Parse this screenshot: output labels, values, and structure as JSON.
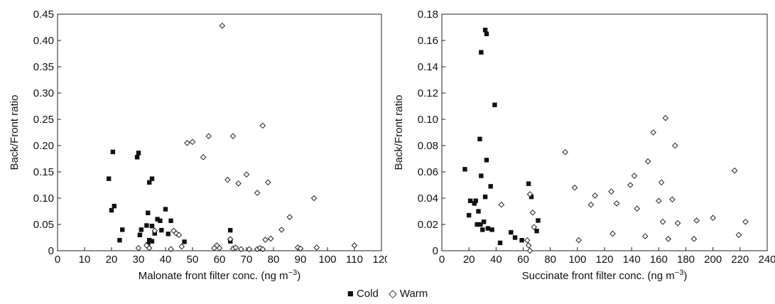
{
  "chart_data": [
    {
      "type": "scatter",
      "xlabel": "Malonate front filter conc. (ng m",
      "xlabel_sup": "−3",
      "xlabel_end": ")",
      "ylabel": "Back/Front ratio",
      "xlim": [
        0,
        120
      ],
      "ylim": [
        0,
        0.45
      ],
      "xticks": [
        0,
        10,
        20,
        30,
        40,
        50,
        60,
        70,
        80,
        90,
        100,
        110,
        120
      ],
      "yticks": [
        "0",
        "0.05",
        "0.10",
        "0.15",
        "0.20",
        "0.25",
        "0.30",
        "0.35",
        "0.40",
        "0.45"
      ],
      "grid": false,
      "series": [
        {
          "name": "Cold",
          "marker": "filled-square",
          "points": [
            [
              19,
              0.137
            ],
            [
              20,
              0.077
            ],
            [
              20.5,
              0.188
            ],
            [
              21,
              0.085
            ],
            [
              23,
              0.02
            ],
            [
              24,
              0.04
            ],
            [
              29.5,
              0.178
            ],
            [
              30,
              0.186
            ],
            [
              30.5,
              0.03
            ],
            [
              31,
              0.04
            ],
            [
              33,
              0.048
            ],
            [
              33.5,
              0.072
            ],
            [
              34,
              0.02
            ],
            [
              34,
              0.13
            ],
            [
              35,
              0.137
            ],
            [
              35,
              0.047
            ],
            [
              36,
              0.033
            ],
            [
              37,
              0.06
            ],
            [
              38,
              0.057
            ],
            [
              38.5,
              0.039
            ],
            [
              40,
              0.079
            ],
            [
              41,
              0.032
            ],
            [
              42,
              0.057
            ],
            [
              33.5,
              0.012
            ],
            [
              35,
              0.018
            ],
            [
              47,
              0.017
            ],
            [
              64,
              0.039
            ],
            [
              64,
              0.018
            ]
          ]
        },
        {
          "name": "Warm",
          "marker": "open-diamond",
          "points": [
            [
              30,
              0.005
            ],
            [
              33,
              0.01
            ],
            [
              34,
              0.005
            ],
            [
              36,
              0.038
            ],
            [
              42,
              0.003
            ],
            [
              43,
              0.038
            ],
            [
              44,
              0.033
            ],
            [
              45,
              0.03
            ],
            [
              46,
              0.008
            ],
            [
              48,
              0.205
            ],
            [
              50,
              0.207
            ],
            [
              54,
              0.178
            ],
            [
              56,
              0.218
            ],
            [
              58,
              0.005
            ],
            [
              59,
              0.01
            ],
            [
              60,
              0.005
            ],
            [
              61,
              0.428
            ],
            [
              63,
              0.135
            ],
            [
              64,
              0.022
            ],
            [
              65,
              0.218
            ],
            [
              65,
              0.004
            ],
            [
              66,
              0.006
            ],
            [
              67,
              0.128
            ],
            [
              68,
              0.003
            ],
            [
              70,
              0.145
            ],
            [
              71,
              0.003
            ],
            [
              74,
              0.11
            ],
            [
              74,
              0.003
            ],
            [
              75,
              0.005
            ],
            [
              76,
              0.238
            ],
            [
              76,
              0.003
            ],
            [
              77,
              0.021
            ],
            [
              78,
              0.13
            ],
            [
              79,
              0.023
            ],
            [
              83,
              0.04
            ],
            [
              86,
              0.064
            ],
            [
              89,
              0.006
            ],
            [
              90,
              0.004
            ],
            [
              95,
              0.1
            ],
            [
              96,
              0.006
            ],
            [
              110,
              0.01
            ]
          ]
        }
      ]
    },
    {
      "type": "scatter",
      "xlabel": "Succinate front filter conc. (ng m",
      "xlabel_sup": "−3",
      "xlabel_end": ")",
      "ylabel": "Back/Front ratio",
      "xlim": [
        0,
        240
      ],
      "ylim": [
        0,
        0.18
      ],
      "xticks": [
        0,
        20,
        40,
        60,
        80,
        100,
        120,
        140,
        160,
        180,
        200,
        220,
        240
      ],
      "yticks": [
        "0",
        "0.02",
        "0.04",
        "0.06",
        "0.08",
        "0.10",
        "0.12",
        "0.14",
        "0.16",
        "0.18"
      ],
      "grid": false,
      "series": [
        {
          "name": "Cold",
          "marker": "filled-square",
          "points": [
            [
              17,
              0.062
            ],
            [
              20,
              0.027
            ],
            [
              21,
              0.038
            ],
            [
              24,
              0.036
            ],
            [
              25,
              0.038
            ],
            [
              26,
              0.02
            ],
            [
              27,
              0.03
            ],
            [
              28,
              0.085
            ],
            [
              28.5,
              0.02
            ],
            [
              29,
              0.057
            ],
            [
              29,
              0.151
            ],
            [
              30,
              0.016
            ],
            [
              31,
              0.022
            ],
            [
              32,
              0.168
            ],
            [
              32,
              0.041
            ],
            [
              33,
              0.165
            ],
            [
              33,
              0.069
            ],
            [
              34,
              0.017
            ],
            [
              36,
              0.049
            ],
            [
              37,
              0.016
            ],
            [
              39,
              0.111
            ],
            [
              43,
              0.006
            ],
            [
              51,
              0.014
            ],
            [
              54,
              0.01
            ],
            [
              59,
              0.008
            ],
            [
              64,
              0.051
            ],
            [
              66,
              0.041
            ],
            [
              70,
              0.015
            ],
            [
              71,
              0.023
            ]
          ]
        },
        {
          "name": "Warm",
          "marker": "open-diamond",
          "points": [
            [
              44,
              0.035
            ],
            [
              63,
              0.008
            ],
            [
              64,
              0.004
            ],
            [
              65,
              0.0
            ],
            [
              65,
              0.043
            ],
            [
              67,
              0.029
            ],
            [
              68,
              0.018
            ],
            [
              91,
              0.075
            ],
            [
              98,
              0.048
            ],
            [
              101,
              0.008
            ],
            [
              110,
              0.035
            ],
            [
              113,
              0.042
            ],
            [
              125,
              0.045
            ],
            [
              126,
              0.013
            ],
            [
              129,
              0.036
            ],
            [
              139,
              0.05
            ],
            [
              142,
              0.057
            ],
            [
              144,
              0.032
            ],
            [
              150,
              0.011
            ],
            [
              152,
              0.068
            ],
            [
              156,
              0.09
            ],
            [
              160,
              0.038
            ],
            [
              162,
              0.052
            ],
            [
              163,
              0.022
            ],
            [
              165,
              0.101
            ],
            [
              167,
              0.009
            ],
            [
              170,
              0.039
            ],
            [
              172,
              0.08
            ],
            [
              174,
              0.021
            ],
            [
              186,
              0.009
            ],
            [
              188,
              0.023
            ],
            [
              200,
              0.025
            ],
            [
              216,
              0.061
            ],
            [
              219,
              0.012
            ],
            [
              224,
              0.022
            ]
          ]
        }
      ]
    }
  ],
  "legend": {
    "cold_symbol": "■",
    "cold_label": "Cold",
    "warm_symbol": "◇",
    "warm_label": "Warm"
  }
}
